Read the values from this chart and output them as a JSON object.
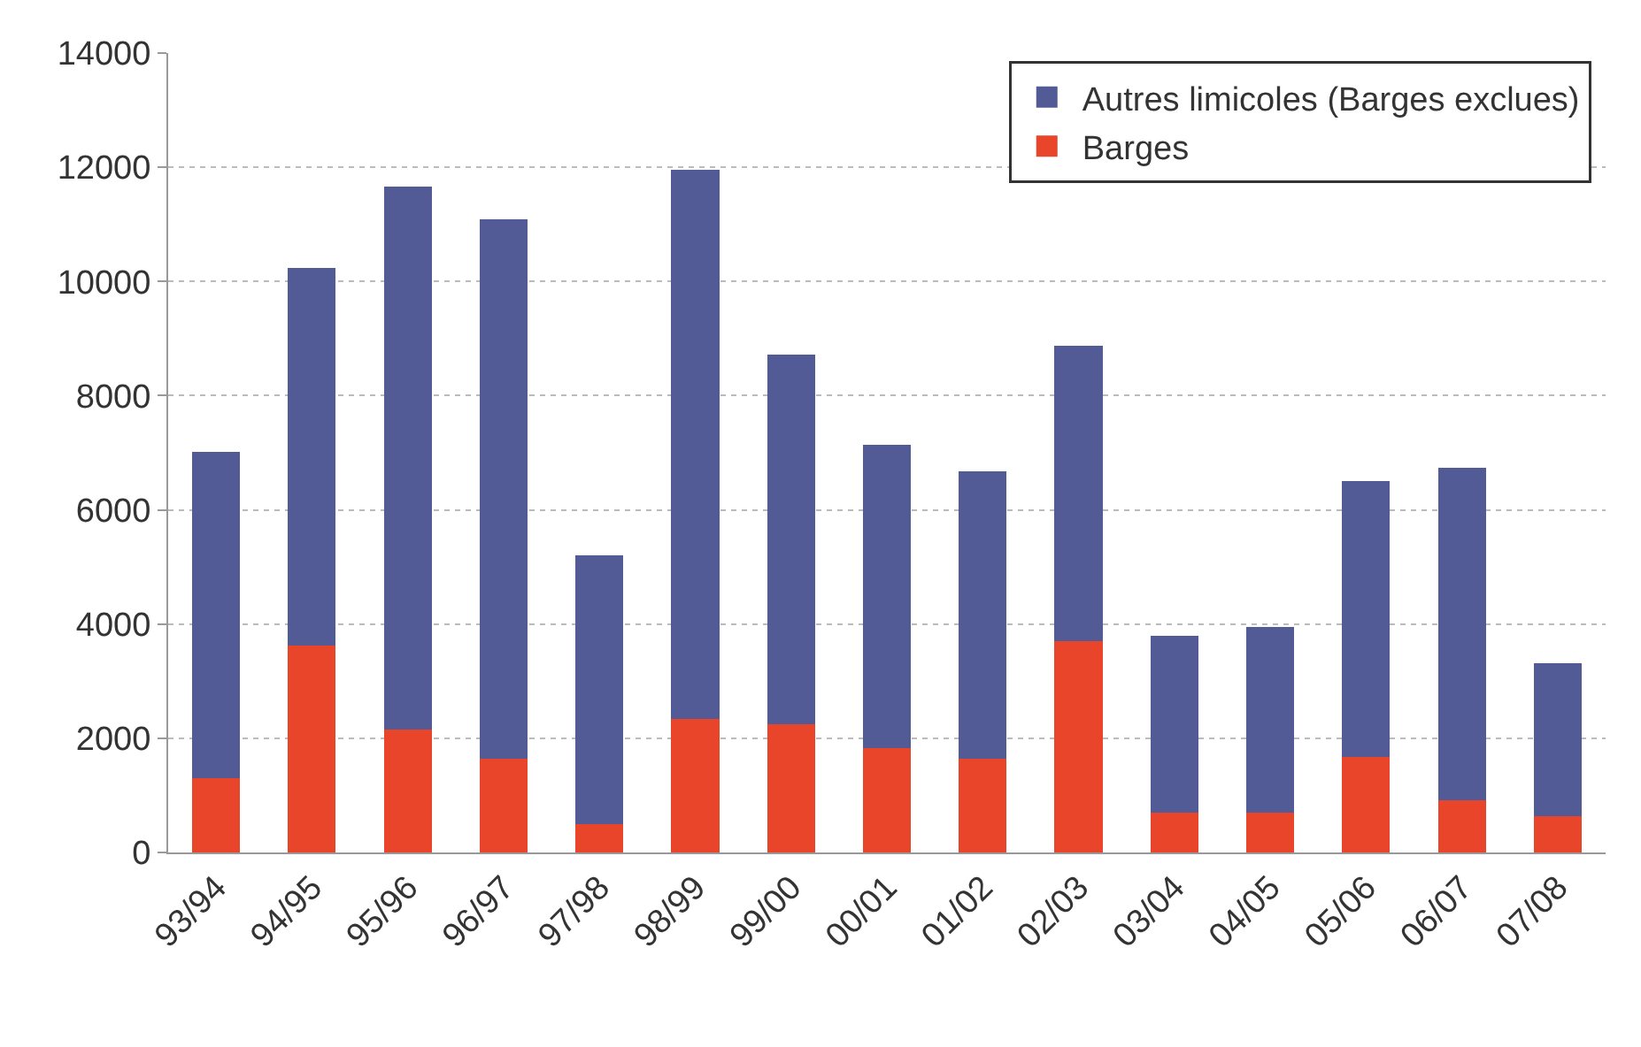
{
  "chart_data": {
    "type": "bar",
    "stacked": true,
    "categories": [
      "93/94",
      "94/95",
      "95/96",
      "96/97",
      "97/98",
      "98/99",
      "99/00",
      "00/01",
      "01/02",
      "02/03",
      "03/04",
      "04/05",
      "05/06",
      "06/07",
      "07/08"
    ],
    "series": [
      {
        "name": "Barges",
        "color": "#e8452a",
        "values": [
          1300,
          3630,
          2150,
          1640,
          500,
          2340,
          2240,
          1830,
          1640,
          3700,
          700,
          700,
          1680,
          920,
          630
        ]
      },
      {
        "name": "Autres limicoles (Barges exclues)",
        "color": "#525b95",
        "values": [
          5720,
          6610,
          9510,
          9450,
          4710,
          9610,
          6480,
          5310,
          5030,
          5180,
          3090,
          3250,
          4830,
          5810,
          2690
        ]
      }
    ],
    "ylim": [
      0,
      14000
    ],
    "yticks": [
      0,
      2000,
      4000,
      6000,
      8000,
      10000,
      12000,
      14000
    ],
    "grid": "y",
    "legend": "top right"
  }
}
